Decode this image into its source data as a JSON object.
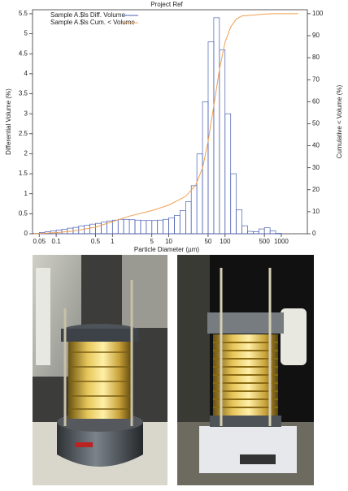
{
  "chart_data": {
    "type": "histogram",
    "title": "Project Ref",
    "x_label": "Particle Diameter (µm)",
    "y_label": "Differential Volume (%)",
    "y2_label": "Cumulative < Volume (%)",
    "log_x": true,
    "legend": "upper left",
    "xlim": [
      0.038,
      2900
    ],
    "xticks": [
      0.05,
      0.1,
      0.5,
      1,
      5,
      10,
      50,
      100,
      500,
      1000
    ],
    "ylim": [
      0,
      5.6
    ],
    "yticks": [
      0,
      0.5,
      1,
      1.5,
      2,
      2.5,
      3,
      3.5,
      4,
      4.5,
      5,
      5.5
    ],
    "y2lim": [
      0,
      101.8
    ],
    "y2ticks": [
      0,
      10,
      20,
      30,
      40,
      50,
      60,
      70,
      80,
      90,
      100
    ],
    "series": [
      {
        "name": "Sample A.$ls Diff. Volume",
        "color": "#4a5fb5",
        "bins": [
          0.0398,
          0.0501,
          0.0631,
          0.0794,
          0.1,
          0.126,
          0.158,
          0.2,
          0.251,
          0.316,
          0.398,
          0.501,
          0.631,
          0.794,
          1,
          1.26,
          1.58,
          2,
          2.51,
          3.16,
          3.98,
          5.01,
          6.31,
          7.94,
          10,
          12.6,
          15.8,
          20,
          25.1,
          31.6,
          39.8,
          50.1,
          63.1,
          79.4,
          100,
          126,
          158,
          200,
          251,
          316,
          398,
          501,
          631,
          794,
          1000
        ],
        "values": [
          0.01,
          0.03,
          0.05,
          0.07,
          0.09,
          0.11,
          0.14,
          0.16,
          0.19,
          0.21,
          0.24,
          0.26,
          0.29,
          0.32,
          0.34,
          0.36,
          0.36,
          0.35,
          0.34,
          0.33,
          0.33,
          0.33,
          0.34,
          0.36,
          0.4,
          0.46,
          0.58,
          0.8,
          1.2,
          2.0,
          3.3,
          4.8,
          5.4,
          4.6,
          3.0,
          1.5,
          0.6,
          0.2,
          0.06,
          0.05,
          0.12,
          0.15,
          0.07,
          0.01
        ]
      },
      {
        "name": "Sample A.$ls Cum. < Volume",
        "color": "#f0a050",
        "axis": "y2",
        "x": [
          0.04,
          0.1,
          0.2,
          0.5,
          1,
          2,
          5,
          10,
          20,
          30,
          40,
          50,
          63,
          80,
          100,
          126,
          158,
          200,
          300,
          500,
          700,
          2000
        ],
        "values": [
          0,
          0.5,
          1.2,
          3,
          5.5,
          8,
          10.5,
          13,
          17,
          22,
          30,
          42,
          58,
          75,
          87,
          94,
          97.5,
          99,
          99.3,
          99.8,
          100,
          100
        ]
      }
    ]
  }
}
